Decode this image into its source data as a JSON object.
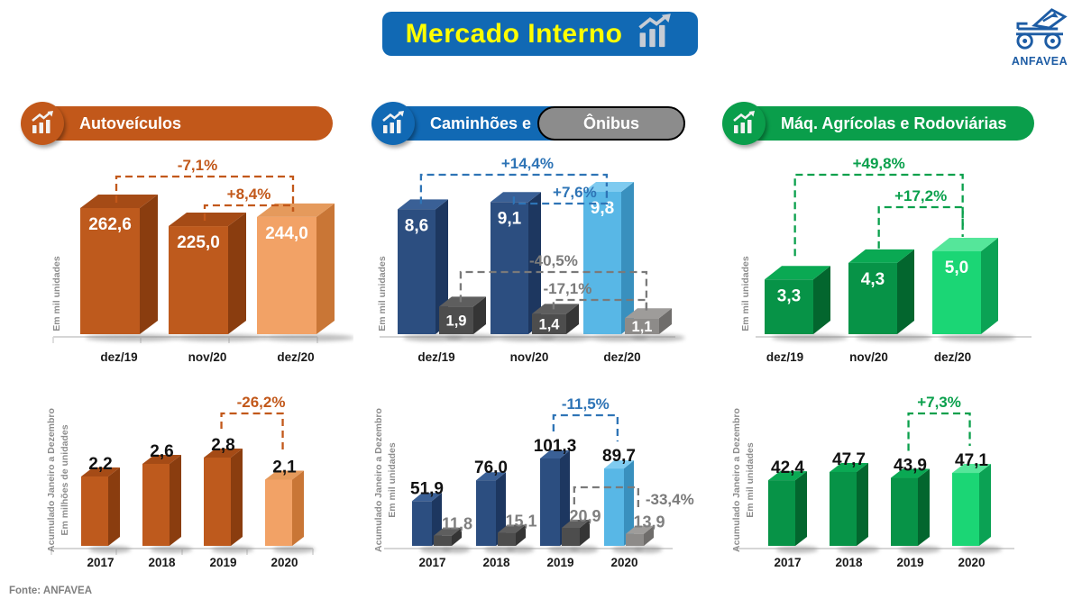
{
  "title": {
    "text": "Mercado Interno",
    "bg": "#1169B4",
    "text_color": "#FFFF00"
  },
  "logo": {
    "name": "ANFAVEA",
    "color": "#1D5CA4"
  },
  "footer": {
    "source": "Fonte: ANFAVEA"
  },
  "sections": [
    {
      "label": "Autoveículos",
      "color": "#C2581A"
    },
    {
      "label": "Caminhões e",
      "label2": "Ônibus",
      "color": "#1169B4",
      "pill_color": "#8C8C8C"
    },
    {
      "label": "Máq. Agrícolas e Rodoviárias",
      "color": "#0A9E4B"
    }
  ],
  "chart_data": [
    {
      "type": "bar",
      "style": "3d",
      "section": "Autoveículos",
      "period": "mensal",
      "categories": [
        "dez/19",
        "nov/20",
        "dez/20"
      ],
      "ylabel": "Em mil unidades",
      "series": [
        {
          "name": "Autoveículos",
          "values": [
            262.6,
            225.0,
            244.0
          ],
          "display": [
            "262,6",
            "225,0",
            "244,0"
          ]
        }
      ],
      "annotations": [
        {
          "label": "-7,1%",
          "series": 0,
          "from": 0,
          "to": 2,
          "color": "#C2581A"
        },
        {
          "label": "+8,4%",
          "series": 0,
          "from": 1,
          "to": 2,
          "color": "#C2581A"
        }
      ],
      "palette": [
        {
          "front": "#BE5A1D",
          "side": "#8A3D0F",
          "top": "#A54B16",
          "lastFront": "#F2A266",
          "lastSide": "#C97636",
          "lastTop": "#E59A5C"
        }
      ]
    },
    {
      "type": "bar",
      "style": "3d",
      "section": "Caminhões e Ônibus",
      "period": "mensal",
      "categories": [
        "dez/19",
        "nov/20",
        "dez/20"
      ],
      "ylabel": "Em mil unidades",
      "series": [
        {
          "name": "Caminhões",
          "values": [
            8.6,
            9.1,
            9.8
          ],
          "display": [
            "8,6",
            "9,1",
            "9,8"
          ]
        },
        {
          "name": "Ônibus",
          "values": [
            1.9,
            1.4,
            1.1
          ],
          "display": [
            "1,9",
            "1,4",
            "1,1"
          ]
        }
      ],
      "annotations": [
        {
          "label": "+14,4%",
          "series": 0,
          "from": 0,
          "to": 2,
          "color": "#2E74B6"
        },
        {
          "label": "+7,6%",
          "series": 0,
          "from": 1,
          "to": 2,
          "color": "#2E74B6"
        },
        {
          "label": "-40,5%",
          "series": 1,
          "from": 0,
          "to": 2,
          "color": "#7A7A7A"
        },
        {
          "label": "-17,1%",
          "series": 1,
          "from": 1,
          "to": 2,
          "color": "#7A7A7A"
        }
      ],
      "palette": [
        {
          "front": "#2C4E80",
          "side": "#1D3760",
          "top": "#3A6096",
          "lastFront": "#58B7E6",
          "lastSide": "#3990BE",
          "lastTop": "#7FCBF0"
        },
        {
          "front": "#4D4D4D",
          "side": "#353535",
          "top": "#5E5E5E",
          "lastFront": "#8D8B89",
          "lastSide": "#6F6D6B",
          "lastTop": "#9E9C9A"
        }
      ]
    },
    {
      "type": "bar",
      "style": "3d",
      "section": "Máq. Agrícolas e Rodoviárias",
      "period": "mensal",
      "categories": [
        "dez/19",
        "nov/20",
        "dez/20"
      ],
      "ylabel": "Em mil unidades",
      "series": [
        {
          "name": "Máq. Agrícolas e Rodoviárias",
          "values": [
            3.3,
            4.3,
            5.0
          ],
          "display": [
            "3,3",
            "4,3",
            "5,0"
          ]
        }
      ],
      "annotations": [
        {
          "label": "+49,8%",
          "series": 0,
          "from": 0,
          "to": 2,
          "color": "#0AA04C"
        },
        {
          "label": "+17,2%",
          "series": 0,
          "from": 1,
          "to": 2,
          "color": "#0AA04C"
        }
      ],
      "palette": [
        {
          "front": "#079347",
          "side": "#03662E",
          "top": "#0AA953",
          "lastFront": "#1BD675",
          "lastSide": "#0BA254",
          "lastTop": "#55E69A"
        }
      ]
    },
    {
      "type": "bar",
      "style": "3d",
      "section": "Autoveículos",
      "period": "acumulado",
      "categories": [
        "2017",
        "2018",
        "2019",
        "2020"
      ],
      "ylabel": "Acumulado Janeiro a Dezembro\nEm milhões de unidades",
      "series": [
        {
          "name": "Autoveículos",
          "values": [
            2.2,
            2.6,
            2.8,
            2.1
          ],
          "display": [
            "2,2",
            "2,6",
            "2,8",
            "2,1"
          ]
        }
      ],
      "annotations": [
        {
          "label": "-26,2%",
          "series": 0,
          "from": 2,
          "to": 3,
          "color": "#C2581A"
        }
      ],
      "palette": [
        {
          "front": "#BE5A1D",
          "side": "#8A3D0F",
          "top": "#A54B16",
          "lastFront": "#F2A266",
          "lastSide": "#C97636",
          "lastTop": "#E59A5C"
        }
      ]
    },
    {
      "type": "bar",
      "style": "3d",
      "section": "Caminhões e Ônibus",
      "period": "acumulado",
      "categories": [
        "2017",
        "2018",
        "2019",
        "2020"
      ],
      "ylabel": "Acumulado Janeiro a Dezembro\nEm mil unidades",
      "series": [
        {
          "name": "Caminhões",
          "values": [
            51.9,
            76.0,
            101.3,
            89.7
          ],
          "display": [
            "51,9",
            "76,0",
            "101,3",
            "89,7"
          ]
        },
        {
          "name": "Ônibus",
          "values": [
            11.8,
            15.1,
            20.9,
            13.9
          ],
          "display": [
            "11,8",
            "15,1",
            "20,9",
            "13,9"
          ]
        }
      ],
      "annotations": [
        {
          "label": "-11,5%",
          "series": 0,
          "from": 2,
          "to": 3,
          "color": "#2E74B6"
        },
        {
          "label": "-33,4%",
          "series": 1,
          "from": 2,
          "to": 3,
          "color": "#7A7A7A"
        }
      ],
      "palette": [
        {
          "front": "#2C4E80",
          "side": "#1D3760",
          "top": "#3A6096",
          "lastFront": "#58B7E6",
          "lastSide": "#3990BE",
          "lastTop": "#7FCBF0"
        },
        {
          "front": "#4D4D4D",
          "side": "#353535",
          "top": "#5E5E5E",
          "lastFront": "#8D8B89",
          "lastSide": "#6F6D6B",
          "lastTop": "#9E9C9A"
        }
      ]
    },
    {
      "type": "bar",
      "style": "3d",
      "section": "Máq. Agrícolas e Rodoviárias",
      "period": "acumulado",
      "categories": [
        "2017",
        "2018",
        "2019",
        "2020"
      ],
      "ylabel": "Acumulado Janeiro a Dezembro\nEm mil unidades",
      "series": [
        {
          "name": "Máq. Agrícolas e Rodoviárias",
          "values": [
            42.4,
            47.7,
            43.9,
            47.1
          ],
          "display": [
            "42,4",
            "47,7",
            "43,9",
            "47,1"
          ]
        }
      ],
      "annotations": [
        {
          "label": "+7,3%",
          "series": 0,
          "from": 2,
          "to": 3,
          "color": "#0AA04C"
        }
      ],
      "palette": [
        {
          "front": "#079347",
          "side": "#03662E",
          "top": "#0AA953",
          "lastFront": "#1BD675",
          "lastSide": "#0BA254",
          "lastTop": "#55E69A"
        }
      ]
    }
  ]
}
